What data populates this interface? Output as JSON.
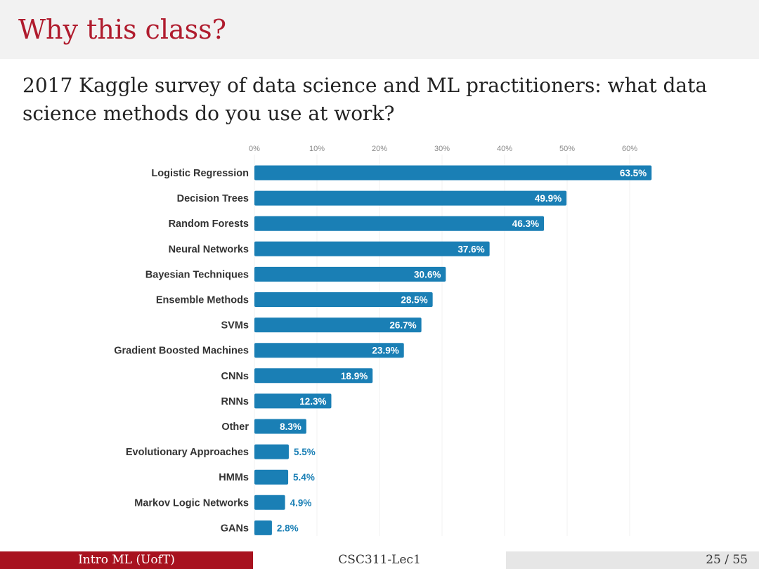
{
  "slide": {
    "title": "Why this class?",
    "text": "2017 Kaggle survey of data science and ML practitioners: what data science methods do you use at work?"
  },
  "chart_data": {
    "type": "bar",
    "orientation": "horizontal",
    "categories": [
      "Logistic Regression",
      "Decision Trees",
      "Random Forests",
      "Neural Networks",
      "Bayesian Techniques",
      "Ensemble Methods",
      "SVMs",
      "Gradient Boosted Machines",
      "CNNs",
      "RNNs",
      "Other",
      "Evolutionary Approaches",
      "HMMs",
      "Markov Logic Networks",
      "GANs"
    ],
    "values": [
      63.5,
      49.9,
      46.3,
      37.6,
      30.6,
      28.5,
      26.7,
      23.9,
      18.9,
      12.3,
      8.3,
      5.5,
      5.4,
      4.9,
      2.8
    ],
    "data_labels": [
      "63.5%",
      "49.9%",
      "46.3%",
      "37.6%",
      "30.6%",
      "28.5%",
      "26.7%",
      "23.9%",
      "18.9%",
      "12.3%",
      "8.3%",
      "5.5%",
      "5.4%",
      "4.9%",
      "2.8%"
    ],
    "x_ticks": [
      0,
      10,
      20,
      30,
      40,
      50,
      60
    ],
    "x_tick_labels": [
      "0%",
      "10%",
      "20%",
      "30%",
      "40%",
      "50%",
      "60%"
    ],
    "xlim": [
      0,
      65
    ],
    "grid": true,
    "bar_color": "#1a7fb5",
    "inside_label_color": "#ffffff",
    "outside_label_color": "#1a7fb5"
  },
  "footer": {
    "left": "Intro ML  (UofT)",
    "center": "CSC311-Lec1",
    "page": "25 / 55"
  }
}
